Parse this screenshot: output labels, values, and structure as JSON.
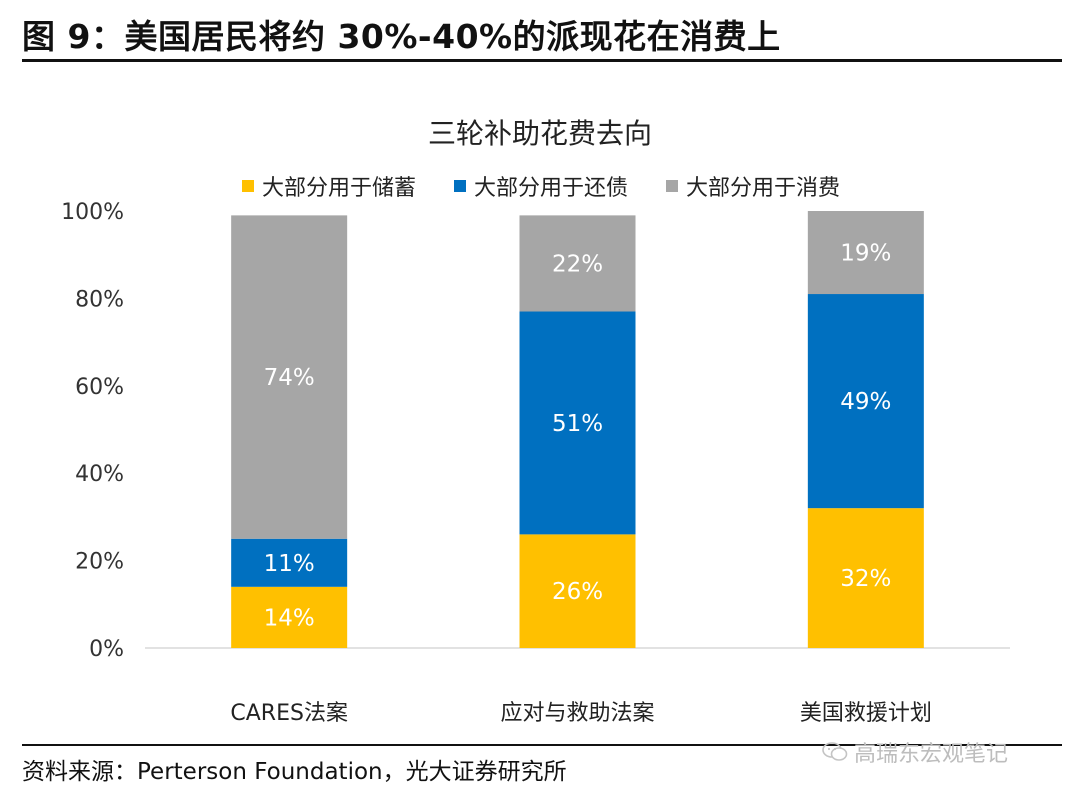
{
  "figure_title": "图 9：美国居民将约 30%-40%的派现花在消费上",
  "source_text": "资料来源：Perterson Foundation，光大证券研究所",
  "watermark_text": "高瑞东宏观笔记",
  "watermark_icon": "wechat-icon",
  "colors": {
    "savings": "#FFC000",
    "debt": "#0070C0",
    "consumption": "#A6A6A6"
  },
  "chart_data": {
    "type": "bar",
    "stacked": true,
    "title": "三轮补助花费去向",
    "categories": [
      "CARES法案",
      "应对与救助法案",
      "美国救援计划"
    ],
    "series": [
      {
        "name": "大部分用于储蓄",
        "values": [
          14,
          26,
          32
        ],
        "labels": [
          "14%",
          "26%",
          "32%"
        ],
        "color": "#FFC000"
      },
      {
        "name": "大部分用于还债",
        "values": [
          11,
          51,
          49
        ],
        "labels": [
          "11%",
          "51%",
          "49%"
        ],
        "color": "#0070C0"
      },
      {
        "name": "大部分用于消费",
        "values": [
          74,
          22,
          19
        ],
        "labels": [
          "74%",
          "22%",
          "19%"
        ],
        "color": "#A6A6A6"
      }
    ],
    "y_ticks": [
      "0%",
      "20%",
      "40%",
      "60%",
      "80%",
      "100%"
    ],
    "ylim": [
      0,
      100
    ],
    "grid": false,
    "legend_position": "top"
  }
}
